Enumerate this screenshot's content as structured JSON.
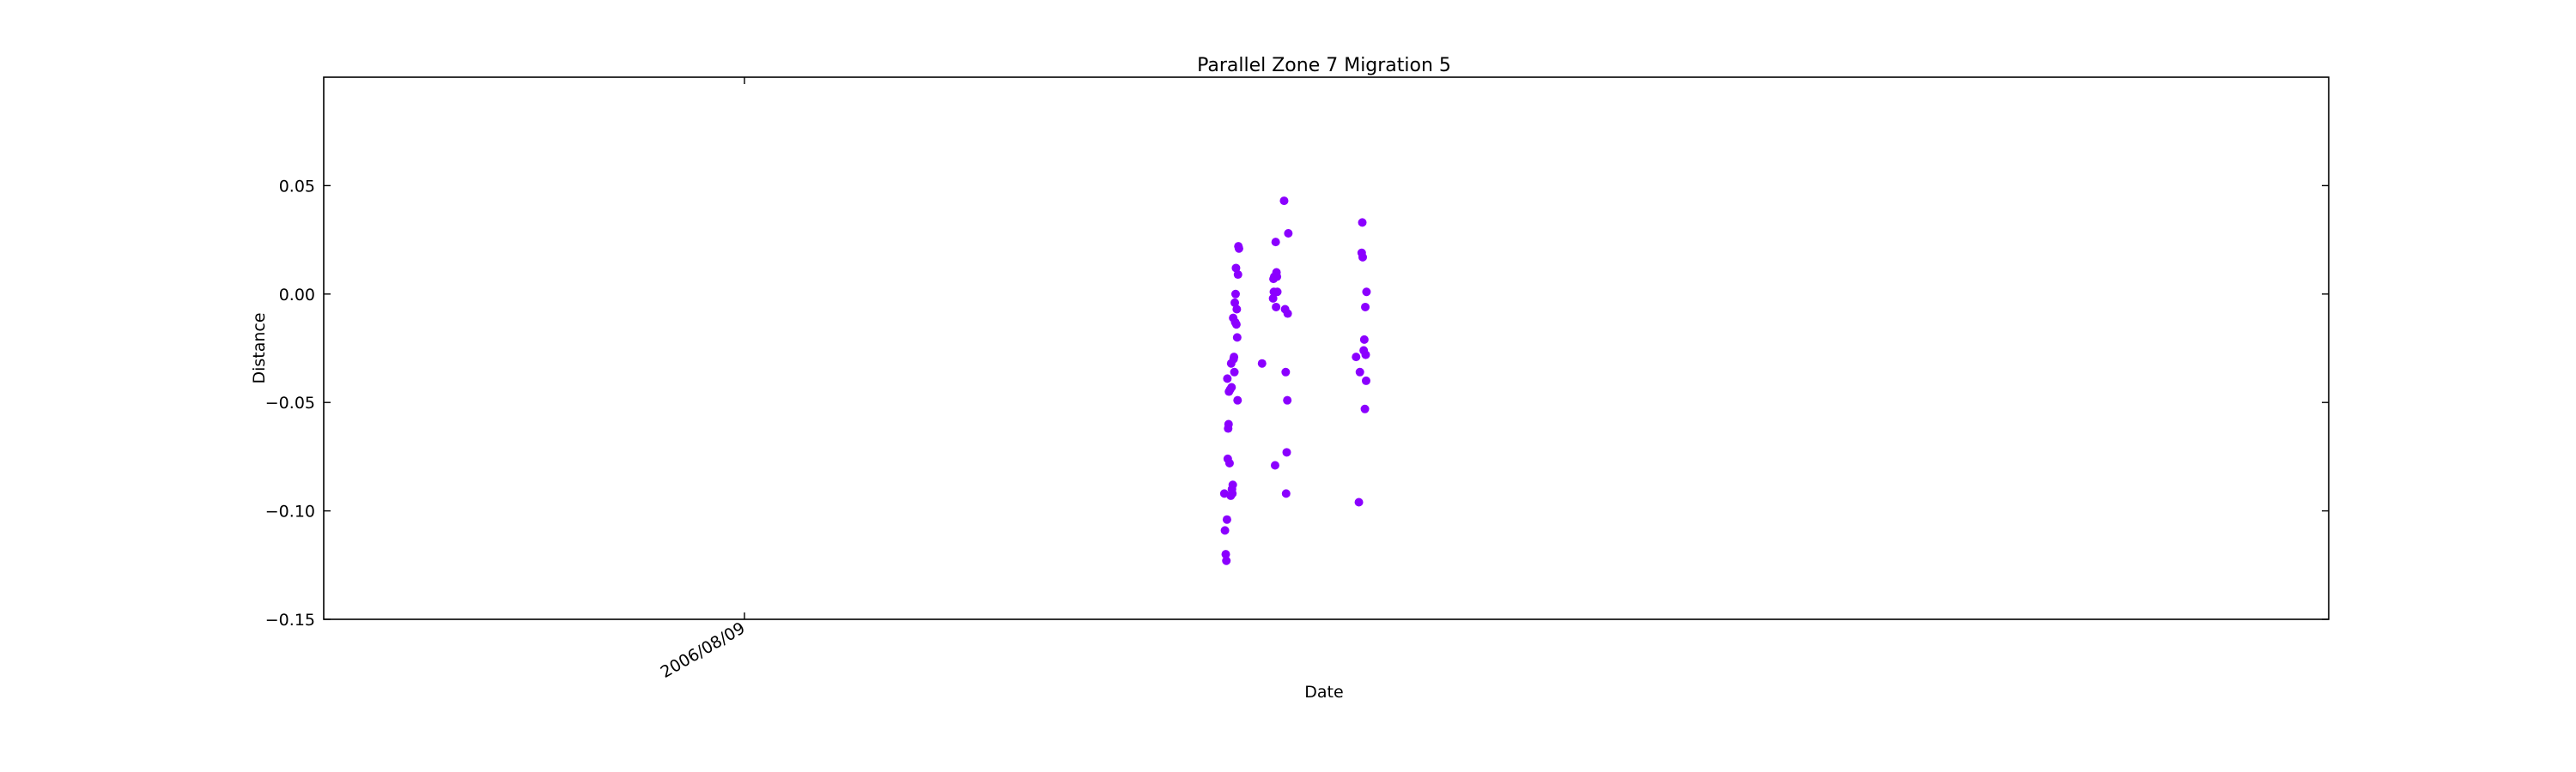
{
  "chart_data": {
    "type": "scatter",
    "title": "Parallel Zone 7 Migration 5",
    "xlabel": "Date",
    "ylabel": "Distance",
    "x_tick_labels": [
      "2006/08/09"
    ],
    "y_ticks": [
      0.05,
      0.0,
      -0.05,
      -0.1,
      -0.15
    ],
    "y_tick_labels": [
      "0.05",
      "0.00",
      "−0.05",
      "−0.10",
      "−0.15"
    ],
    "ylim": [
      -0.15,
      0.1
    ],
    "grid": false,
    "point_color": "#8b00ff",
    "series": [
      {
        "points": [
          [
            0.4492,
            -0.092
          ],
          [
            0.4495,
            -0.109
          ],
          [
            0.4499,
            -0.12
          ],
          [
            0.4502,
            -0.123
          ],
          [
            0.4505,
            -0.104
          ],
          [
            0.4507,
            -0.039
          ],
          [
            0.4509,
            -0.076
          ],
          [
            0.4511,
            -0.062
          ],
          [
            0.4513,
            -0.06
          ],
          [
            0.4515,
            -0.045
          ],
          [
            0.4518,
            -0.078
          ],
          [
            0.4521,
            -0.044
          ],
          [
            0.4524,
            -0.093
          ],
          [
            0.4526,
            -0.032
          ],
          [
            0.4528,
            -0.043
          ],
          [
            0.453,
            -0.09
          ],
          [
            0.4532,
            -0.092
          ],
          [
            0.4534,
            -0.088
          ],
          [
            0.4536,
            -0.011
          ],
          [
            0.4538,
            -0.03
          ],
          [
            0.454,
            -0.029
          ],
          [
            0.4542,
            -0.036
          ],
          [
            0.4544,
            -0.004
          ],
          [
            0.4546,
            -0.013
          ],
          [
            0.4548,
            0.0
          ],
          [
            0.455,
            0.012
          ],
          [
            0.4552,
            -0.014
          ],
          [
            0.4554,
            -0.007
          ],
          [
            0.4556,
            -0.02
          ],
          [
            0.4558,
            -0.049
          ],
          [
            0.456,
            0.009
          ],
          [
            0.4562,
            0.022
          ],
          [
            0.4565,
            0.021
          ],
          [
            0.468,
            -0.032
          ],
          [
            0.4735,
            -0.002
          ],
          [
            0.4737,
            0.007
          ],
          [
            0.4739,
            0.001
          ],
          [
            0.4741,
            0.008
          ],
          [
            0.4745,
            -0.079
          ],
          [
            0.4748,
            0.024
          ],
          [
            0.475,
            -0.006
          ],
          [
            0.4752,
            0.01
          ],
          [
            0.4754,
            0.008
          ],
          [
            0.4756,
            0.001
          ],
          [
            0.479,
            0.043
          ],
          [
            0.4795,
            -0.007
          ],
          [
            0.4798,
            -0.036
          ],
          [
            0.48,
            -0.092
          ],
          [
            0.4803,
            -0.073
          ],
          [
            0.4806,
            -0.049
          ],
          [
            0.4808,
            -0.009
          ],
          [
            0.4811,
            0.028
          ],
          [
            0.5149,
            -0.029
          ],
          [
            0.5163,
            -0.096
          ],
          [
            0.5168,
            -0.036
          ],
          [
            0.5177,
            0.019
          ],
          [
            0.518,
            0.033
          ],
          [
            0.5182,
            0.017
          ],
          [
            0.5187,
            -0.026
          ],
          [
            0.519,
            -0.021
          ],
          [
            0.5193,
            -0.053
          ],
          [
            0.5195,
            -0.006
          ],
          [
            0.5197,
            -0.028
          ],
          [
            0.5199,
            -0.04
          ],
          [
            0.5201,
            0.001
          ]
        ]
      }
    ]
  }
}
